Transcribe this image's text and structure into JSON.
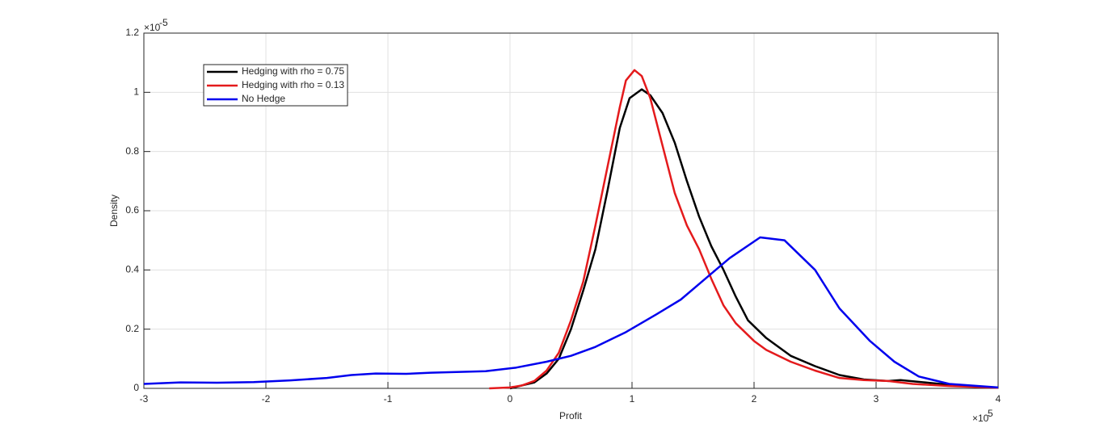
{
  "chart_data": {
    "type": "line",
    "x_label": "Profit",
    "y_label": "Density",
    "x_multiplier": {
      "base": "×10",
      "exponent": "5"
    },
    "y_multiplier": {
      "base": "×10",
      "exponent": "-5"
    },
    "xlim": [
      -3,
      4
    ],
    "ylim": [
      0,
      1.2
    ],
    "xticks": [
      -3,
      -2,
      -1,
      0,
      1,
      2,
      3,
      4
    ],
    "yticks": [
      0,
      0.2,
      0.4,
      0.6,
      0.8,
      1,
      1.2
    ],
    "grid": true,
    "legend": "upper left",
    "series": [
      {
        "name": "Hedging with rho = 0.75",
        "color": "#000000",
        "x": [
          0,
          0.1,
          0.2,
          0.3,
          0.4,
          0.5,
          0.6,
          0.7,
          0.8,
          0.9,
          0.98,
          1.08,
          1.15,
          1.25,
          1.35,
          1.45,
          1.55,
          1.65,
          1.75,
          1.85,
          1.95,
          2.1,
          2.3,
          2.5,
          2.7,
          2.9,
          3.1,
          3.2,
          3.4,
          3.7,
          4.0
        ],
        "values": [
          0,
          0.01,
          0.02,
          0.05,
          0.1,
          0.2,
          0.33,
          0.47,
          0.67,
          0.88,
          0.98,
          1.01,
          0.99,
          0.93,
          0.83,
          0.7,
          0.58,
          0.48,
          0.4,
          0.31,
          0.23,
          0.17,
          0.11,
          0.075,
          0.045,
          0.03,
          0.025,
          0.028,
          0.02,
          0.008,
          0.002
        ]
      },
      {
        "name": "Hedging with rho = 0.13",
        "color": "#e41a1c",
        "x": [
          -0.17,
          0,
          0.1,
          0.2,
          0.3,
          0.4,
          0.5,
          0.6,
          0.7,
          0.8,
          0.85,
          0.9,
          0.95,
          1.02,
          1.08,
          1.15,
          1.25,
          1.35,
          1.45,
          1.55,
          1.65,
          1.75,
          1.85,
          2.0,
          2.1,
          2.3,
          2.5,
          2.7,
          2.9,
          3.1,
          3.3,
          3.6,
          4.0
        ],
        "values": [
          0,
          0.003,
          0.01,
          0.025,
          0.06,
          0.12,
          0.23,
          0.36,
          0.55,
          0.75,
          0.85,
          0.95,
          1.04,
          1.075,
          1.055,
          0.98,
          0.82,
          0.66,
          0.55,
          0.47,
          0.37,
          0.28,
          0.22,
          0.16,
          0.13,
          0.09,
          0.06,
          0.035,
          0.028,
          0.025,
          0.015,
          0.008,
          0.002
        ]
      },
      {
        "name": "No Hedge",
        "color": "#0000ee",
        "x": [
          -3,
          -2.7,
          -2.4,
          -2.1,
          -1.8,
          -1.5,
          -1.3,
          -1.1,
          -0.85,
          -0.65,
          -0.2,
          0.05,
          0.3,
          0.5,
          0.7,
          0.95,
          1.2,
          1.4,
          1.6,
          1.8,
          2.05,
          2.25,
          2.5,
          2.7,
          2.95,
          3.15,
          3.35,
          3.6,
          4.0
        ],
        "values": [
          0.015,
          0.02,
          0.019,
          0.021,
          0.027,
          0.035,
          0.045,
          0.05,
          0.049,
          0.053,
          0.058,
          0.07,
          0.09,
          0.11,
          0.14,
          0.19,
          0.25,
          0.3,
          0.37,
          0.44,
          0.51,
          0.5,
          0.4,
          0.27,
          0.16,
          0.09,
          0.04,
          0.015,
          0.003
        ]
      }
    ]
  }
}
